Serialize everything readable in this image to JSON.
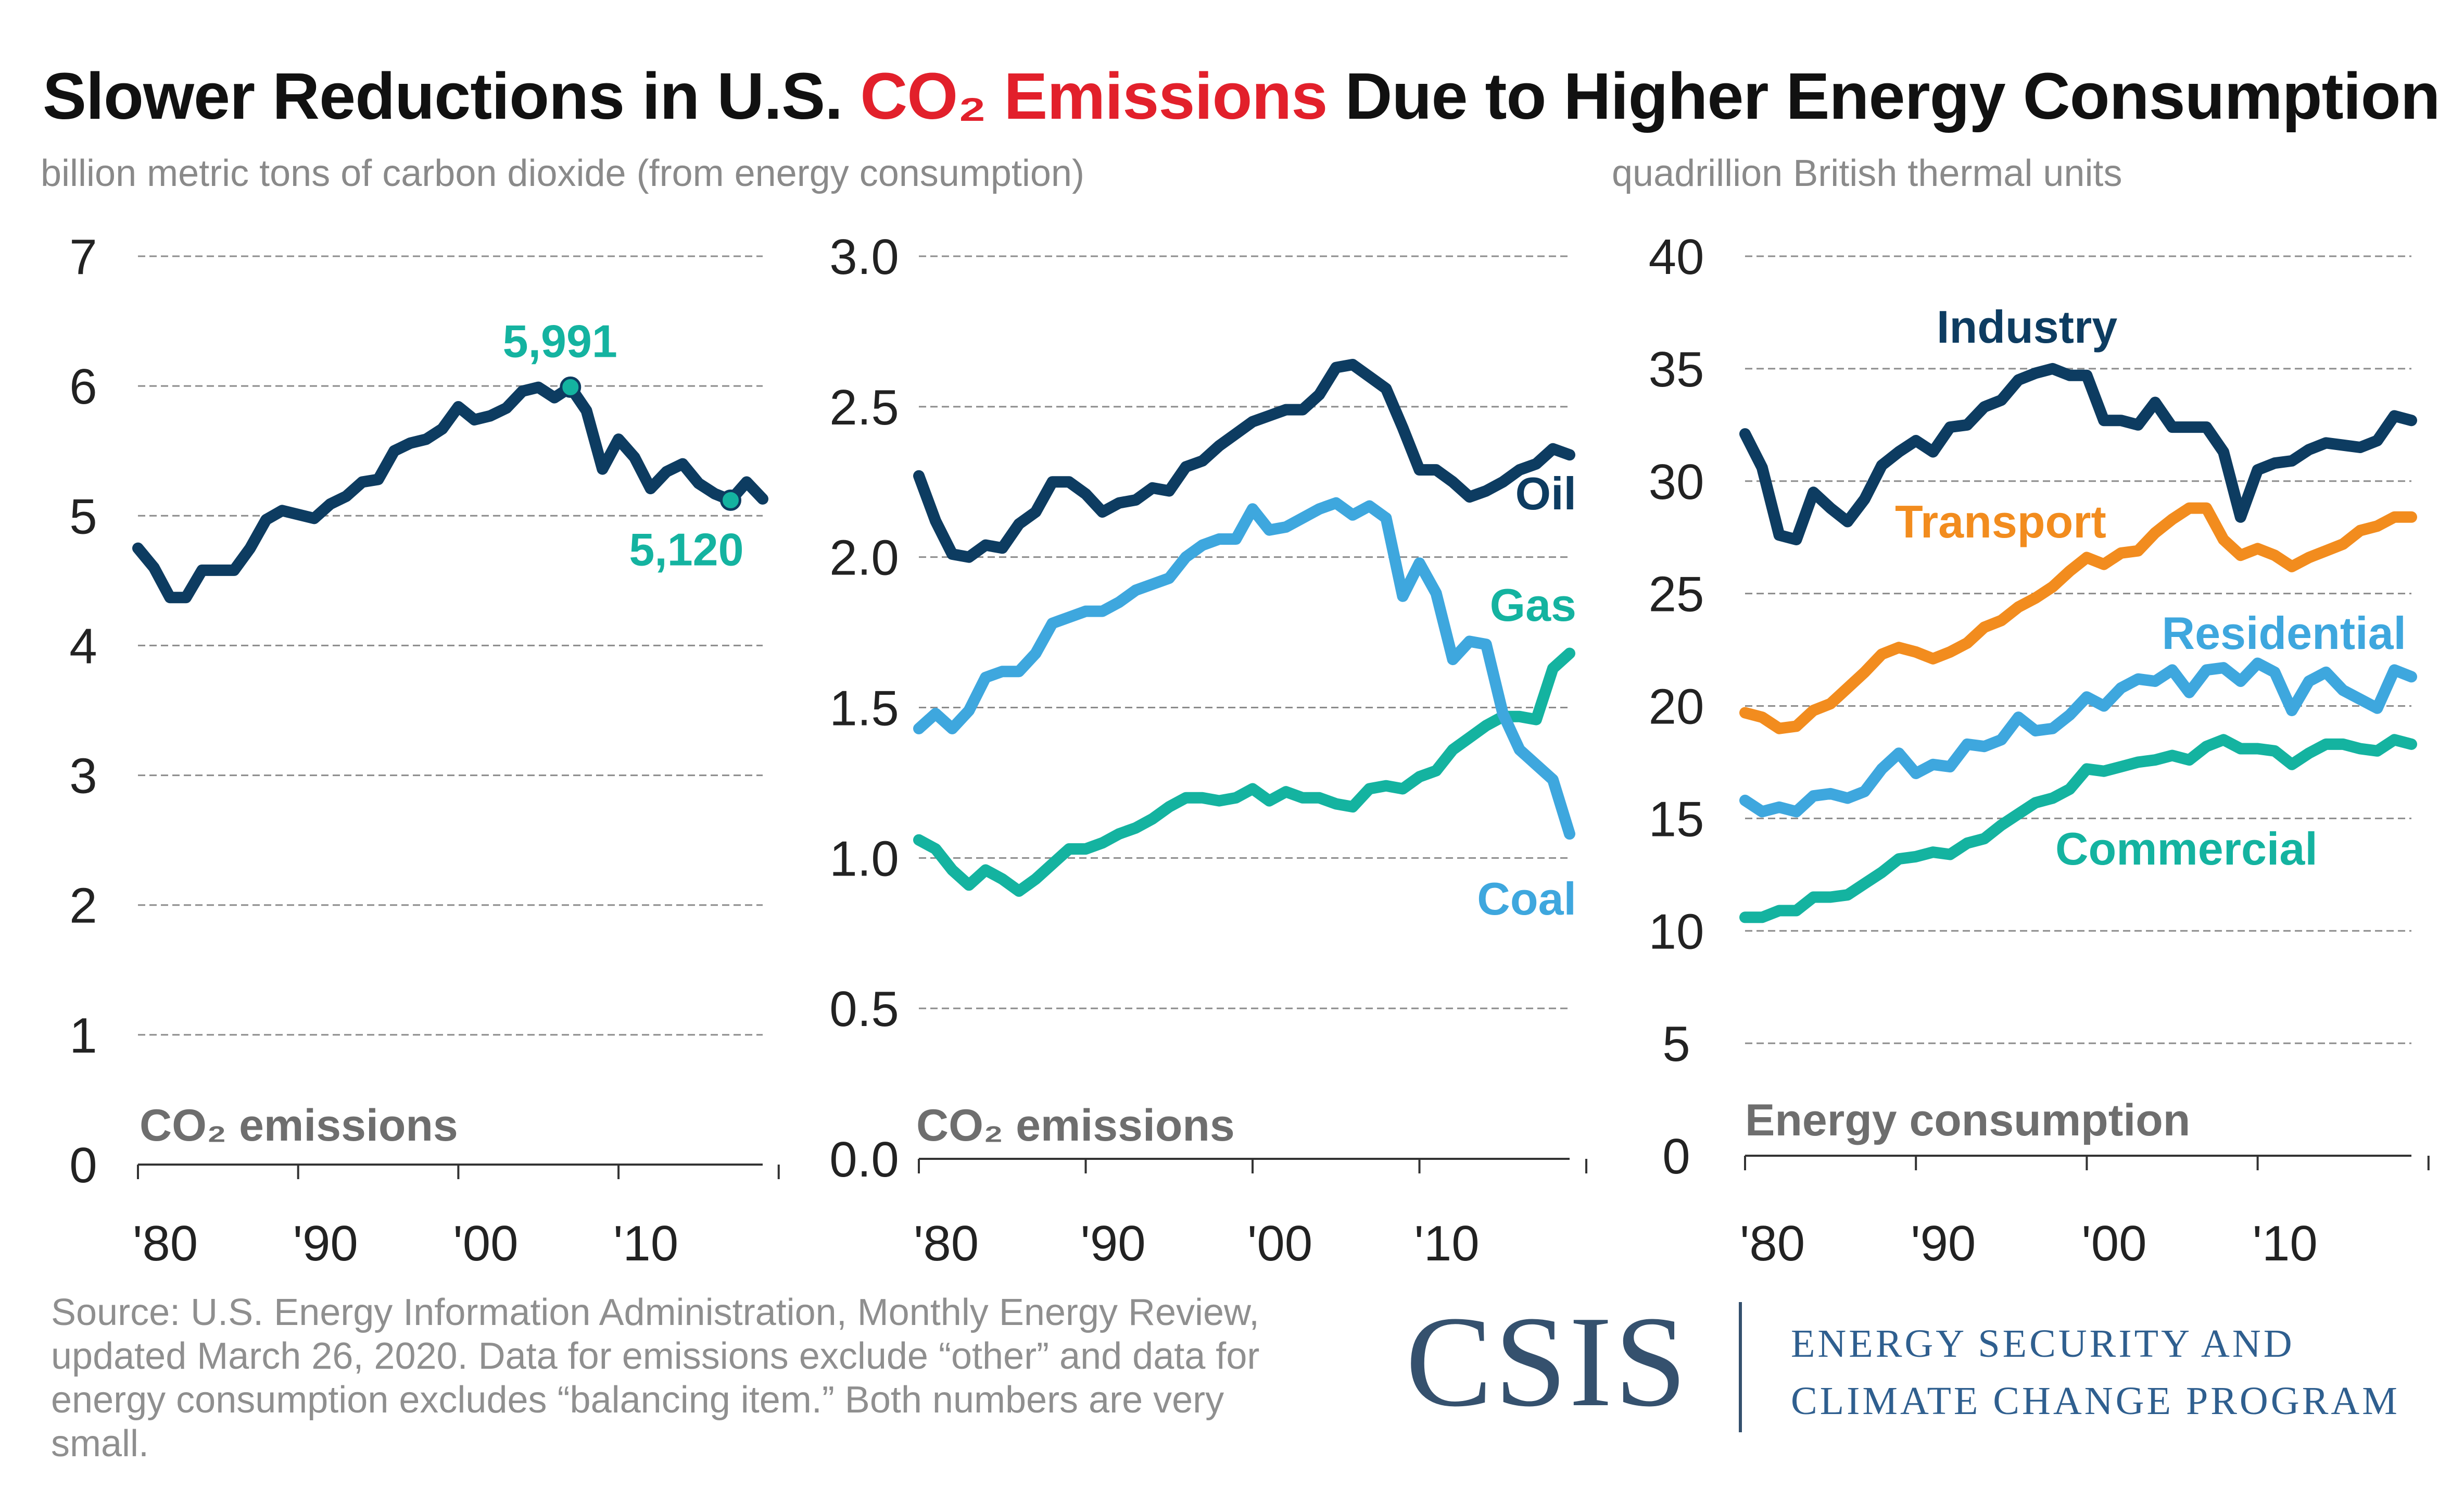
{
  "title": {
    "pre": "Slower Reductions in U.S. ",
    "highlight": "CO₂ Emissions",
    "post": " Due to Higher Energy Consumption"
  },
  "units": {
    "emissions": "billion metric tons of carbon dioxide (from energy consumption)",
    "energy": "quadrillion British thermal units"
  },
  "source": "Source: U.S. Energy Information Administration, Monthly Energy Review, updated March 26, 2020. Data for emissions exclude “other” and data for energy consumption excludes “balancing item.” Both numbers are very small.",
  "logo": {
    "name": "CSIS",
    "line1": "ENERGY SECURITY AND",
    "line2": "CLIMATE CHANGE PROGRAM"
  },
  "colors": {
    "dark_navy": "#0d3c61",
    "teal": "#14b3a0",
    "light_blue": "#3ea7de",
    "orange": "#f28c1e",
    "title_red": "#e2202b",
    "grid": "#8c8c8c",
    "panel_label": "#6e6e6e"
  },
  "chart_data": [
    {
      "type": "line",
      "panel_label": "CO₂ emissions",
      "x": [
        1980,
        1981,
        1982,
        1983,
        1984,
        1985,
        1986,
        1987,
        1988,
        1989,
        1990,
        1991,
        1992,
        1993,
        1994,
        1995,
        1996,
        1997,
        1998,
        1999,
        2000,
        2001,
        2002,
        2003,
        2004,
        2005,
        2006,
        2007,
        2008,
        2009,
        2010,
        2011,
        2012,
        2013,
        2014,
        2015,
        2016,
        2017,
        2018,
        2019
      ],
      "x_tick_values": [
        1980,
        1990,
        2000,
        2010
      ],
      "x_tick_labels": [
        "'80",
        "'90",
        "'00",
        "'10"
      ],
      "ylim": [
        0,
        7
      ],
      "y_ticks": [
        0,
        1,
        2,
        3,
        4,
        5,
        6,
        7
      ],
      "y_tick_labels": [
        "0",
        "1",
        "2",
        "3",
        "4",
        "5",
        "6",
        "7"
      ],
      "grid": "horizontal dashed",
      "series": [
        {
          "color": "#0d3c61",
          "values": [
            4.75,
            4.6,
            4.37,
            4.37,
            4.58,
            4.58,
            4.58,
            4.75,
            4.97,
            5.04,
            5.01,
            4.98,
            5.09,
            5.15,
            5.26,
            5.28,
            5.5,
            5.56,
            5.59,
            5.67,
            5.84,
            5.74,
            5.77,
            5.83,
            5.96,
            5.99,
            5.91,
            5.991,
            5.81,
            5.36,
            5.59,
            5.45,
            5.21,
            5.34,
            5.4,
            5.25,
            5.17,
            5.12,
            5.26,
            5.13
          ]
        }
      ],
      "annotations": [
        {
          "text": "5,991",
          "x": 2007,
          "y": 5.991,
          "color": "#14b3a0",
          "position": "above"
        },
        {
          "text": "5,120",
          "x": 2017,
          "y": 5.12,
          "color": "#14b3a0",
          "position": "below"
        }
      ]
    },
    {
      "type": "line",
      "panel_label": "CO₂ emissions",
      "x": [
        1980,
        1981,
        1982,
        1983,
        1984,
        1985,
        1986,
        1987,
        1988,
        1989,
        1990,
        1991,
        1992,
        1993,
        1994,
        1995,
        1996,
        1997,
        1998,
        1999,
        2000,
        2001,
        2002,
        2003,
        2004,
        2005,
        2006,
        2007,
        2008,
        2009,
        2010,
        2011,
        2012,
        2013,
        2014,
        2015,
        2016,
        2017,
        2018,
        2019
      ],
      "x_tick_values": [
        1980,
        1990,
        2000,
        2010
      ],
      "x_tick_labels": [
        "'80",
        "'90",
        "'00",
        "'10"
      ],
      "ylim": [
        0,
        3
      ],
      "y_ticks": [
        0,
        0.5,
        1,
        1.5,
        2,
        2.5,
        3
      ],
      "y_tick_labels": [
        "0.0",
        "0.5",
        "1.0",
        "1.5",
        "2.0",
        "2.5",
        "3.0"
      ],
      "grid": "horizontal dashed",
      "series": [
        {
          "name": "Oil",
          "color": "#0d3c61",
          "values": [
            2.27,
            2.12,
            2.01,
            2.0,
            2.04,
            2.03,
            2.11,
            2.15,
            2.25,
            2.25,
            2.21,
            2.15,
            2.18,
            2.19,
            2.23,
            2.22,
            2.3,
            2.32,
            2.37,
            2.41,
            2.45,
            2.47,
            2.49,
            2.49,
            2.54,
            2.63,
            2.64,
            2.6,
            2.56,
            2.43,
            2.29,
            2.29,
            2.25,
            2.2,
            2.22,
            2.25,
            2.29,
            2.31,
            2.36,
            2.34
          ]
        },
        {
          "name": "Gas",
          "color": "#14b3a0",
          "values": [
            1.06,
            1.03,
            0.96,
            0.91,
            0.96,
            0.93,
            0.89,
            0.93,
            0.98,
            1.03,
            1.03,
            1.05,
            1.08,
            1.1,
            1.13,
            1.17,
            1.2,
            1.2,
            1.19,
            1.2,
            1.23,
            1.19,
            1.22,
            1.2,
            1.2,
            1.18,
            1.17,
            1.23,
            1.24,
            1.23,
            1.27,
            1.29,
            1.36,
            1.4,
            1.44,
            1.47,
            1.47,
            1.46,
            1.63,
            1.68
          ]
        },
        {
          "name": "Coal",
          "color": "#3ea7de",
          "values": [
            1.43,
            1.48,
            1.43,
            1.49,
            1.6,
            1.62,
            1.62,
            1.68,
            1.78,
            1.8,
            1.82,
            1.82,
            1.85,
            1.89,
            1.91,
            1.93,
            2.0,
            2.04,
            2.06,
            2.06,
            2.16,
            2.09,
            2.1,
            2.13,
            2.16,
            2.18,
            2.14,
            2.17,
            2.13,
            1.87,
            1.98,
            1.88,
            1.66,
            1.72,
            1.71,
            1.48,
            1.36,
            1.31,
            1.26,
            1.08
          ]
        }
      ]
    },
    {
      "type": "line",
      "panel_label": "Energy consumption",
      "x": [
        1980,
        1981,
        1982,
        1983,
        1984,
        1985,
        1986,
        1987,
        1988,
        1989,
        1990,
        1991,
        1992,
        1993,
        1994,
        1995,
        1996,
        1997,
        1998,
        1999,
        2000,
        2001,
        2002,
        2003,
        2004,
        2005,
        2006,
        2007,
        2008,
        2009,
        2010,
        2011,
        2012,
        2013,
        2014,
        2015,
        2016,
        2017,
        2018,
        2019
      ],
      "x_tick_values": [
        1980,
        1990,
        2000,
        2010
      ],
      "x_tick_labels": [
        "'80",
        "'90",
        "'00",
        "'10"
      ],
      "ylim": [
        0,
        40
      ],
      "y_ticks": [
        0,
        5,
        10,
        15,
        20,
        25,
        30,
        35,
        40
      ],
      "y_tick_labels": [
        "0",
        "5",
        "10",
        "15",
        "20",
        "25",
        "30",
        "35",
        "40"
      ],
      "grid": "horizontal dashed",
      "series": [
        {
          "name": "Industry",
          "color": "#0d3c61",
          "values": [
            32.1,
            30.6,
            27.6,
            27.4,
            29.5,
            28.8,
            28.2,
            29.2,
            30.7,
            31.3,
            31.8,
            31.3,
            32.4,
            32.5,
            33.3,
            33.6,
            34.5,
            34.8,
            35.0,
            34.7,
            34.7,
            32.7,
            32.7,
            32.5,
            33.5,
            32.4,
            32.4,
            32.4,
            31.3,
            28.4,
            30.5,
            30.8,
            30.9,
            31.4,
            31.7,
            31.6,
            31.5,
            31.8,
            32.9,
            32.7
          ]
        },
        {
          "name": "Transport",
          "color": "#f28c1e",
          "values": [
            19.7,
            19.5,
            19.0,
            19.1,
            19.8,
            20.1,
            20.8,
            21.5,
            22.3,
            22.6,
            22.4,
            22.1,
            22.4,
            22.8,
            23.5,
            23.8,
            24.4,
            24.8,
            25.3,
            26.0,
            26.6,
            26.3,
            26.8,
            26.9,
            27.7,
            28.3,
            28.8,
            28.8,
            27.4,
            26.7,
            27.0,
            26.7,
            26.2,
            26.6,
            26.9,
            27.2,
            27.8,
            28.0,
            28.4,
            28.4
          ]
        },
        {
          "name": "Residential",
          "color": "#3ea7de",
          "values": [
            15.8,
            15.3,
            15.5,
            15.3,
            16.0,
            16.1,
            15.9,
            16.2,
            17.2,
            17.9,
            17.0,
            17.4,
            17.3,
            18.3,
            18.2,
            18.5,
            19.5,
            18.9,
            19.0,
            19.6,
            20.4,
            20.0,
            20.8,
            21.2,
            21.1,
            21.6,
            20.6,
            21.6,
            21.7,
            21.1,
            21.9,
            21.5,
            19.8,
            21.1,
            21.5,
            20.7,
            20.3,
            19.9,
            21.6,
            21.3
          ]
        },
        {
          "name": "Commercial",
          "color": "#14b3a0",
          "values": [
            10.6,
            10.6,
            10.9,
            10.9,
            11.5,
            11.5,
            11.6,
            12.1,
            12.6,
            13.2,
            13.3,
            13.5,
            13.4,
            13.9,
            14.1,
            14.7,
            15.2,
            15.7,
            15.9,
            16.3,
            17.2,
            17.1,
            17.3,
            17.5,
            17.6,
            17.8,
            17.6,
            18.2,
            18.5,
            18.1,
            18.1,
            18.0,
            17.4,
            17.9,
            18.3,
            18.3,
            18.1,
            18.0,
            18.5,
            18.3
          ]
        }
      ]
    }
  ]
}
